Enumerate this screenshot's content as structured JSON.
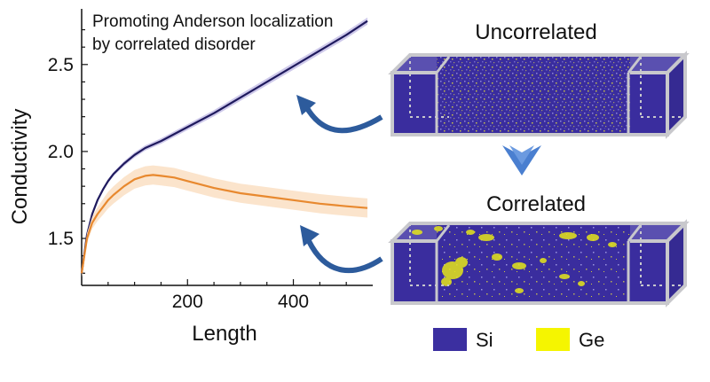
{
  "chart_data": {
    "type": "line",
    "title": [
      "Promoting Anderson localization",
      "by correlated disorder"
    ],
    "xlabel": "Length",
    "ylabel": "Conductivity",
    "xlim": [
      0,
      550
    ],
    "ylim": [
      1.23,
      2.82
    ],
    "xticks": [
      200,
      400
    ],
    "yticks": [
      1.5,
      2.0,
      2.5
    ],
    "grid": false,
    "series": [
      {
        "color": "#1f1a5e",
        "band_color": "#c9c3e8",
        "x": [
          0,
          10,
          20,
          30,
          40,
          50,
          60,
          80,
          100,
          120,
          150,
          200,
          250,
          300,
          350,
          400,
          450,
          500,
          540
        ],
        "y": [
          1.3,
          1.52,
          1.64,
          1.72,
          1.78,
          1.83,
          1.87,
          1.93,
          1.98,
          2.02,
          2.06,
          2.14,
          2.22,
          2.31,
          2.4,
          2.49,
          2.58,
          2.67,
          2.75
        ],
        "band": [
          0.01,
          0.01,
          0.01,
          0.01,
          0.012,
          0.012,
          0.012,
          0.014,
          0.015,
          0.015,
          0.016,
          0.017,
          0.018,
          0.019,
          0.02,
          0.02,
          0.02,
          0.02,
          0.02
        ]
      },
      {
        "color": "#e8892f",
        "band_color": "#fbe1c6",
        "x": [
          0,
          10,
          20,
          30,
          40,
          50,
          60,
          80,
          100,
          120,
          135,
          150,
          175,
          200,
          250,
          300,
          350,
          400,
          450,
          500,
          540
        ],
        "y": [
          1.3,
          1.5,
          1.59,
          1.64,
          1.68,
          1.72,
          1.75,
          1.8,
          1.84,
          1.86,
          1.865,
          1.86,
          1.85,
          1.83,
          1.79,
          1.76,
          1.74,
          1.72,
          1.7,
          1.685,
          1.675
        ],
        "band": [
          0.02,
          0.03,
          0.035,
          0.04,
          0.045,
          0.048,
          0.05,
          0.052,
          0.054,
          0.055,
          0.055,
          0.055,
          0.055,
          0.055,
          0.055,
          0.055,
          0.055,
          0.055,
          0.055,
          0.055,
          0.055
        ]
      }
    ]
  },
  "panels": {
    "top_label": "Uncorrelated",
    "bottom_label": "Correlated"
  },
  "legend": {
    "items": [
      {
        "label": "Si",
        "color": "#3b2fa0"
      },
      {
        "label": "Ge",
        "color": "#f5f500"
      }
    ]
  },
  "colors": {
    "arrow": "#2d5b9c",
    "down_arrow": "#4a7fd0",
    "box_fill": "#3a2d9e",
    "box_frame": "#c8c8cc"
  }
}
